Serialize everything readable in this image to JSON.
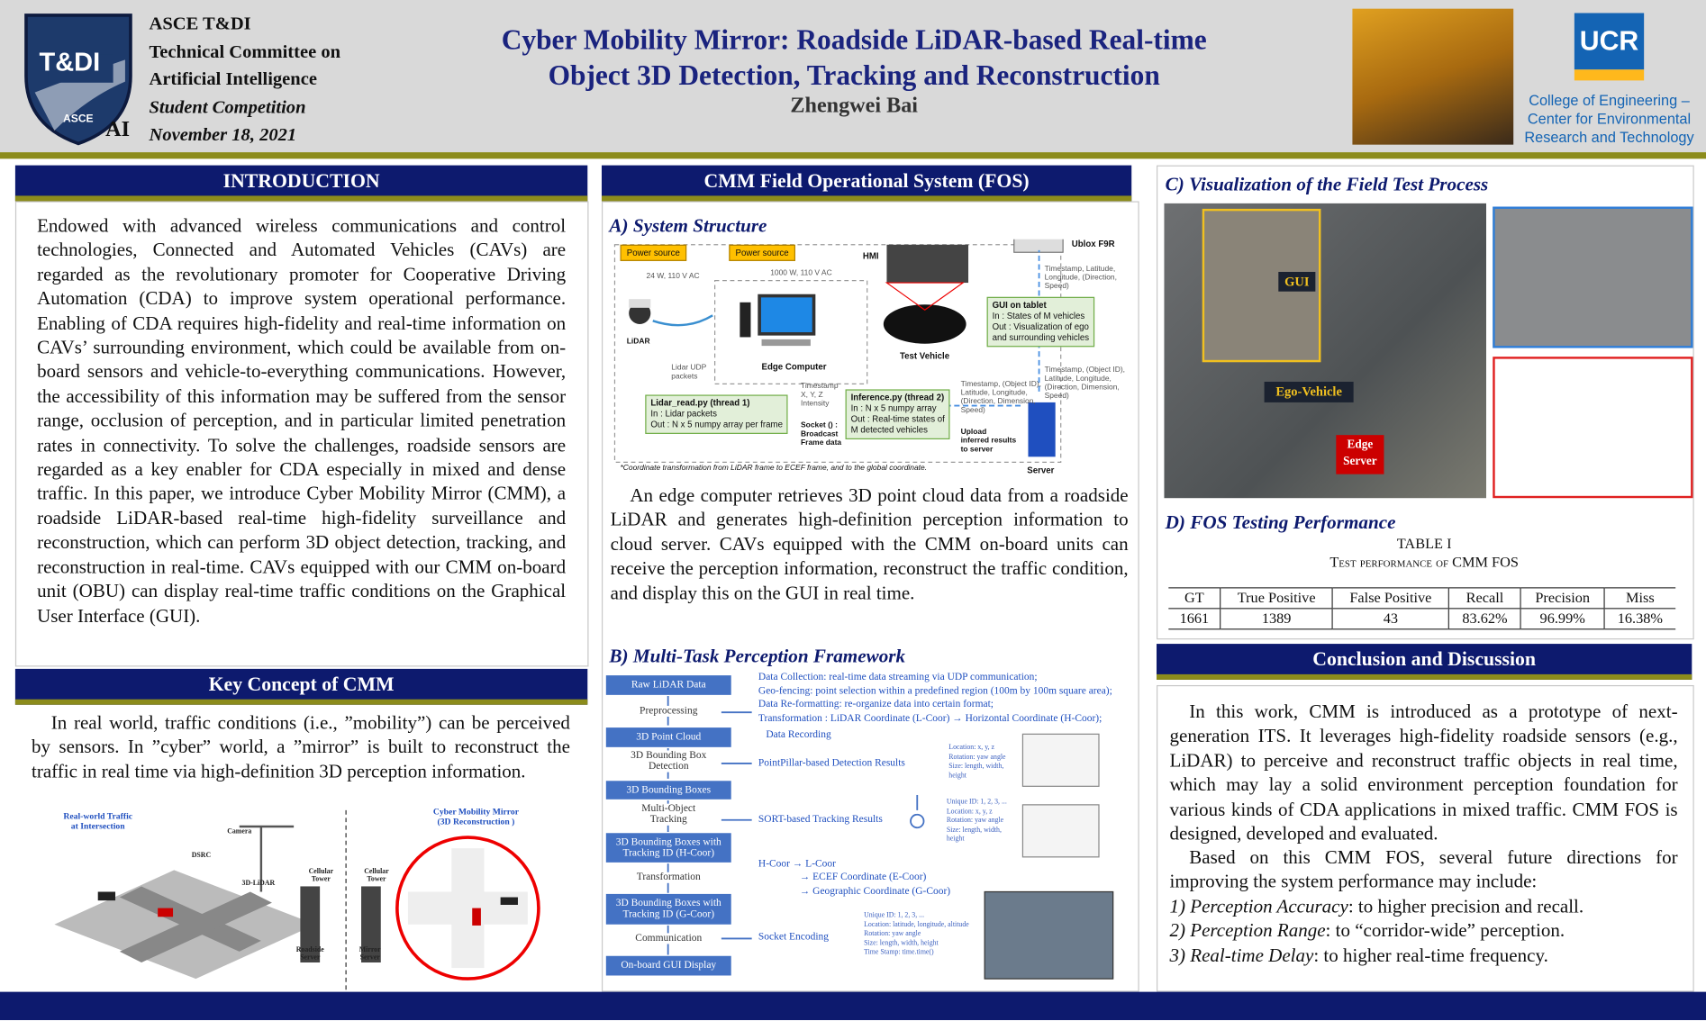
{
  "header": {
    "logo_main": "T&DI",
    "logo_sub": "ASCE",
    "logo_ai": "AI",
    "org": [
      "ASCE T&DI",
      "Technical Committee on",
      "Artificial Intelligence",
      "Student Competition",
      "November 18, 2021"
    ],
    "title": [
      "Cyber Mobility Mirror: Roadside LiDAR-based Real-time",
      "Object 3D Detection, Tracking and Reconstruction"
    ],
    "author": "Zhengwei Bai",
    "ucr": "UCR",
    "college": [
      "College of Engineering –",
      "Center for Environmental",
      "Research and Technology"
    ]
  },
  "introduction": {
    "heading": "INTRODUCTION",
    "text": "Endowed with advanced wireless communications and control technologies, Connected and Automated Vehicles (CAVs) are regarded as the revolutionary promoter for Cooperative Driving Automation (CDA) to improve system operational performance. Enabling of CDA requires high-fidelity and real-time information on CAVs’ surrounding environment, which could be available from on-board sensors and vehicle-to-everything communications. However, the accessibility of this information may be suffered from the sensor range, occlusion of perception, and in particular limited penetration rates in connectivity. To solve the challenges, roadside sensors are regarded as a key enabler for CDA especially in mixed and dense traffic. In this paper, we introduce Cyber Mobility Mirror (CMM), a roadside LiDAR-based real-time high-fidelity surveillance and reconstruction, which can perform 3D object detection, tracking, and reconstruction in real-time. CAVs equipped with our CMM on-board unit (OBU) can display real-time traffic conditions on the Graphical User Interface (GUI)."
  },
  "key_concept": {
    "heading": "Key Concept of CMM",
    "text": "In real world, traffic conditions (i.e., ”mobility”) can be perceived by sensors. In ”cyber” world, a ”mirror” is built to reconstruct the traffic in real time via high-definition 3D perception information.",
    "figure": {
      "left_title": [
        "Real-world Traffic",
        "at Intersection"
      ],
      "right_title": [
        "Cyber Mobility Mirror",
        "(3D Reconstruction )"
      ],
      "camera": "Camera",
      "dsrc": "DSRC",
      "lidar": "3D-LiDAR",
      "tower_1": [
        "Cellular",
        "Tower"
      ],
      "tower_2": [
        "Cellular",
        "Tower"
      ],
      "roadside_server": [
        "Roadside",
        "Server"
      ],
      "mirror_server": [
        "Mirror",
        "Server"
      ]
    }
  },
  "fos": {
    "heading": "CMM Field Operational System (FOS)",
    "system_title": "A) System Structure",
    "system": {
      "power_1": "Power source",
      "power_2": "Power source",
      "power_1_spec": "24 W, 110 V AC",
      "power_2_spec": "1000 W, 110 V AC",
      "lidar": "LiDAR",
      "udp": [
        "Lidar UDP",
        "packets"
      ],
      "edge": "Edge Computer",
      "hmi": "HMI",
      "vehicle": "Test Vehicle",
      "ublox": "Ublox F9R",
      "gps_fields": [
        "Timestamp, Latitude,",
        "Longitude, (Direction,",
        "Speed)"
      ],
      "gui": [
        "GUI on tablet",
        "In : States of M vehicles",
        "Out : Visualization of ego",
        "and surrounding vehicles"
      ],
      "thread_1": [
        "Lidar_read.py (thread 1)",
        "In : Lidar packets",
        "Out : N x 5 numpy array per frame"
      ],
      "frame_fields": [
        "Timestamp",
        "X, Y, Z",
        "Intensity"
      ],
      "socket": [
        "Socket () :",
        "Broadcast",
        "Frame data"
      ],
      "thread_2": [
        "Inference.py (thread 2)",
        "In : N x 5 numpy array",
        "Out : Real-time states of",
        "M detected vehicles"
      ],
      "result_fields_1": [
        "Timestamp, (Object ID),",
        "Latitude, Longitude,",
        "(Direction, Dimension,",
        "Speed)"
      ],
      "result_fields_2": [
        "Timestamp, (Object ID),",
        "Latitude, Longitude,",
        "(Direction, Dimension,",
        "Speed)"
      ],
      "upload": [
        "Upload",
        "inferred results",
        "to server"
      ],
      "server": "Server",
      "footnote": "*Coordinate transformation from LiDAR frame to ECEF frame, and to the global coordinate."
    },
    "text": "An edge computer retrieves 3D point cloud data from a roadside LiDAR and generates high-definition perception information to cloud server. CAVs equipped with the CMM on-board units can receive the perception information, reconstruct the traffic condition, and display this on the GUI in real time.",
    "framework_title": "B) Multi-Task Perception Framework",
    "framework": {
      "boxes": [
        "Raw LiDAR Data",
        "3D Point Cloud",
        "3D Bounding Boxes",
        "3D Bounding Boxes with Tracking ID (H-Coor)",
        "3D Bounding Boxes with Tracking ID (G-Coor)",
        "On-board GUI Display"
      ],
      "steps": [
        "Preprocessing",
        "3D Bounding Box Detection",
        "Multi-Object Tracking",
        "Transformation",
        "Communication"
      ],
      "preprocess_notes": [
        "Data Collection: real-time data streaming via UDP communication;",
        "Geo-fencing: point selection within a predefined region (100m by 100m square area);",
        "Data Re-formatting: re-organize data into certain format;",
        "Transformation : LiDAR Coordinate (L-Coor) → Horizontal Coordinate (H-Coor);"
      ],
      "recording": "Data Recording",
      "detection": "PointPillar-based Detection Results",
      "tracking": "SORT-based Tracking Results",
      "transform_notes": [
        "H-Coor → L-Coor",
        "→ ECEF Coordinate (E-Coor)",
        "→ Geographic Coordinate (G-Coor)"
      ],
      "socket": "Socket Encoding",
      "detection_fields": [
        "Location: x, y, z",
        "Rotation: yaw angle",
        "Size: length, width,",
        "height"
      ],
      "tracking_fields": [
        "Unique ID: 1, 2, 3, ...",
        "Location: x, y, z",
        "Rotation: yaw angle",
        "Size: length, width,",
        "height"
      ],
      "message_fields": [
        "Unique ID: 1, 2, 3, ...",
        "Location: latitude, longitude, altitude",
        "Rotation: yaw angle",
        "Size: length, width, height",
        "Time Stamp: time.time()"
      ]
    }
  },
  "visualization": {
    "title": "C) Visualization of the Field Test Process",
    "gui": "GUI",
    "ego": "Ego-Vehicle",
    "edge": [
      "Edge",
      "Server"
    ]
  },
  "performance": {
    "title": "D) FOS Testing Performance",
    "table_label": "TABLE I",
    "table_caption": "Test performance of CMM FOS",
    "table": {
      "header": [
        "GT",
        "True Positive",
        "False Positive",
        "Recall",
        "Precision",
        "Miss"
      ],
      "rows": [
        [
          "1661",
          "1389",
          "43",
          "83.62%",
          "96.99%",
          "16.38%"
        ]
      ]
    }
  },
  "conclusion": {
    "heading": "Conclusion and Discussion",
    "paragraphs": [
      "In this work, CMM is introduced as a prototype of next-generation ITS. It leverages high-fidelity roadside sensors (e.g., LiDAR) to perceive and reconstruct traffic objects in real time, which may lay a solid environment perception foundation for various kinds of CDA applications in mixed traffic. CMM FOS is designed, developed and evaluated.",
      "Based on this CMM FOS, several future directions for improving the system performance may include:"
    ],
    "items": [
      {
        "label": "1) Perception Accuracy",
        "text": ": to higher precision and recall."
      },
      {
        "label": "2) Perception Range",
        "text": ": to “corridor-wide”  perception."
      },
      {
        "label": "3) Real-time Delay",
        "text": ": to higher real-time frequency."
      }
    ]
  }
}
